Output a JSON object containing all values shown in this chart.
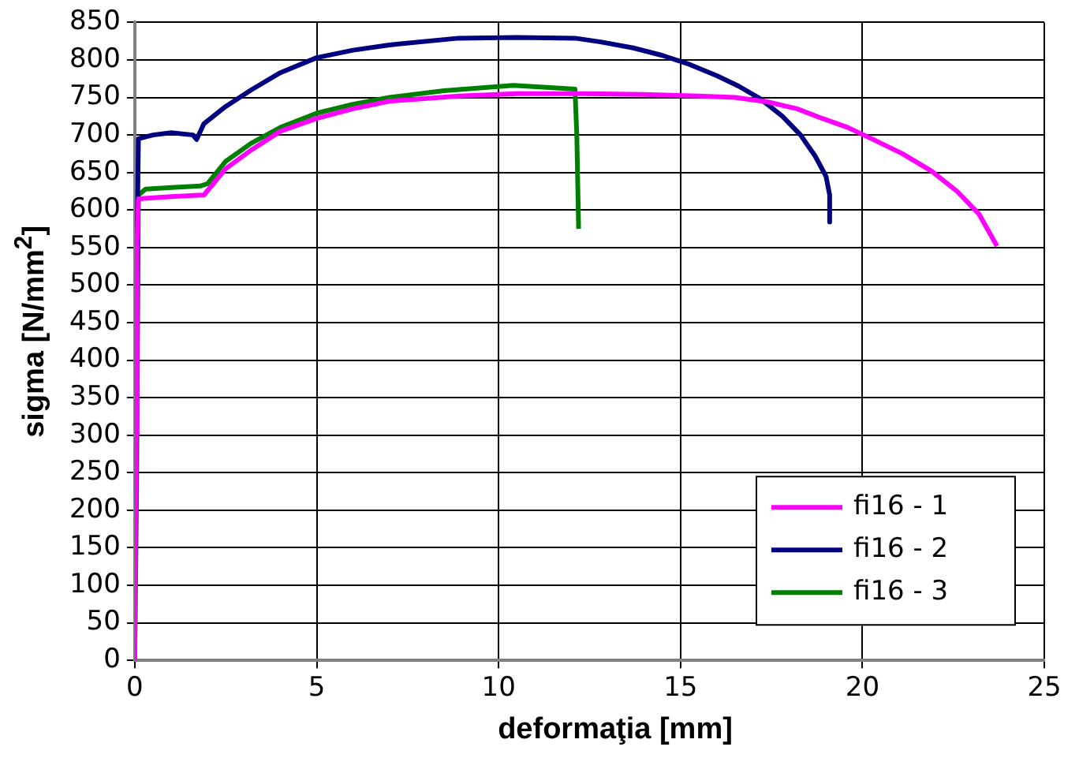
{
  "chart_data": {
    "type": "line",
    "xlabel": "deformaţia [mm]",
    "ylabel": "sigma [N/mm$^{2}$]",
    "xlim": [
      0,
      25
    ],
    "xticks": [
      0,
      5,
      10,
      15,
      20,
      25
    ],
    "ylim": [
      0,
      850
    ],
    "yticks": [
      0,
      50,
      100,
      150,
      200,
      250,
      300,
      350,
      400,
      450,
      500,
      550,
      600,
      650,
      700,
      750,
      800,
      850
    ],
    "grid": true,
    "legend": "bottom right",
    "marker": "none",
    "line_style": "solid",
    "series": [
      {
        "name": "fi16 - 1",
        "color": "#ff00ff",
        "x": [
          0,
          0.03,
          0.06,
          0.1,
          1.0,
          1.9,
          2.5,
          3.2,
          4.0,
          5,
          6,
          7,
          8.9,
          10.5,
          12.3,
          14,
          15.5,
          16.5,
          17.4,
          18.2,
          18.9,
          19.6,
          20.3,
          21.1,
          21.9,
          22.6,
          23.2,
          23.7
        ],
        "values": [
          0,
          300,
          560,
          615,
          618,
          620,
          655,
          680,
          705,
          722,
          735,
          745,
          752,
          755,
          755,
          754,
          752,
          750,
          744,
          735,
          722,
          710,
          694,
          675,
          652,
          625,
          595,
          552
        ]
      },
      {
        "name": "fi16 - 2",
        "color": "#000080",
        "x": [
          0,
          0.05,
          0.1,
          0.5,
          1.0,
          1.6,
          1.7,
          1.9,
          2.5,
          3.2,
          4.0,
          5,
          6,
          7,
          8.9,
          10.5,
          12.1,
          12.8,
          13.7,
          14.5,
          15.25,
          16,
          16.6,
          17.2,
          17.8,
          18.3,
          18.7,
          19.0,
          19.1,
          19.1
        ],
        "values": [
          210,
          500,
          695,
          700,
          703,
          700,
          694,
          715,
          738,
          760,
          783,
          803,
          813,
          820,
          829,
          830,
          829,
          824,
          816,
          806,
          794,
          779,
          765,
          748,
          725,
          700,
          672,
          645,
          620,
          584
        ]
      },
      {
        "name": "fi16 - 3",
        "color": "#008000",
        "x": [
          0,
          0.05,
          0.1,
          0.3,
          1.0,
          1.8,
          2.0,
          2.5,
          3.2,
          4.0,
          5,
          6,
          7,
          8.5,
          10.4,
          11.5,
          12.1,
          12.15,
          12.2
        ],
        "values": [
          0,
          230,
          620,
          628,
          630,
          632,
          635,
          665,
          689,
          710,
          729,
          741,
          750,
          759,
          766,
          763,
          761,
          700,
          575
        ]
      }
    ]
  }
}
